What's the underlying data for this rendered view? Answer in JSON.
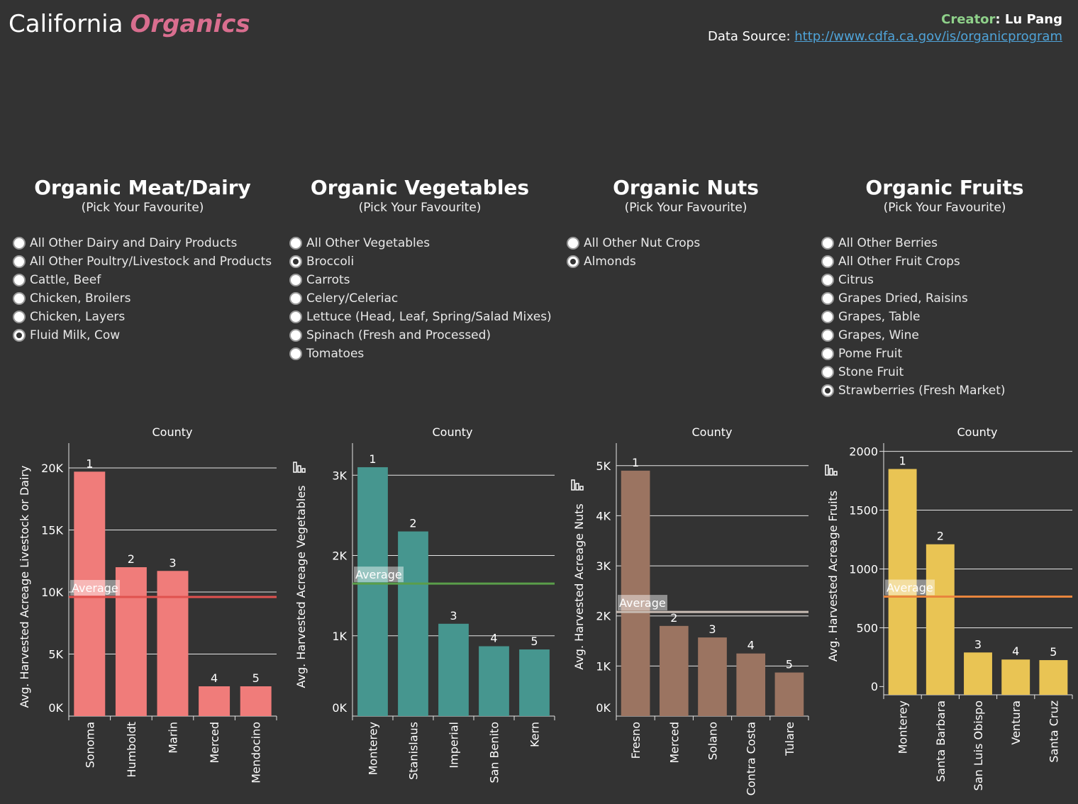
{
  "header": {
    "title_part1": "California",
    "title_part2": "Organics",
    "creator_label": "Creator",
    "creator_name": ": Lu Pang",
    "source_label": "Data Source: ",
    "source_link": "http://www.cdfa.ca.gov/is/organicprogram"
  },
  "panels": [
    {
      "title": "Organic Meat/Dairy",
      "subtitle": "(Pick Your Favourite)",
      "options": [
        "All Other Dairy and Dairy Products",
        "All Other Poultry/Livestock and Products",
        "Cattle, Beef",
        "Chicken, Broilers",
        "Chicken, Layers",
        "Fluid Milk, Cow"
      ],
      "selected_index": 5
    },
    {
      "title": "Organic Vegetables",
      "subtitle": "(Pick Your Favourite)",
      "options": [
        "All Other Vegetables",
        "Broccoli",
        "Carrots",
        "Celery/Celeriac",
        "Lettuce (Head, Leaf, Spring/Salad Mixes)",
        "Spinach (Fresh and Processed)",
        "Tomatoes"
      ],
      "selected_index": 1
    },
    {
      "title": "Organic Nuts",
      "subtitle": "(Pick Your Favourite)",
      "options": [
        "All Other Nut Crops",
        "Almonds"
      ],
      "selected_index": 1
    },
    {
      "title": "Organic Fruits",
      "subtitle": "(Pick Your Favourite)",
      "options": [
        "All Other Berries",
        "All Other Fruit Crops",
        "Citrus",
        "Grapes Dried, Raisins",
        "Grapes, Table",
        "Grapes, Wine",
        "Pome Fruit",
        "Stone Fruit",
        "Strawberries (Fresh Market)"
      ],
      "selected_index": 8
    }
  ],
  "chart_data": [
    {
      "type": "bar",
      "title": "County",
      "xlabel": "",
      "ylabel": "Avg. Harvested Acreage Livestock or Dairy",
      "categories": [
        "Sonoma",
        "Humboldt",
        "Marin",
        "Merced",
        "Mendocino"
      ],
      "values": [
        19700,
        12000,
        11700,
        2400,
        2400
      ],
      "ranks": [
        "1",
        "2",
        "3",
        "4",
        "5"
      ],
      "average": 9600,
      "average_label": "Average",
      "ylim": [
        0,
        22000
      ],
      "yticks": [
        0,
        5000,
        10000,
        15000,
        20000
      ],
      "ytick_labels": [
        "0K",
        "5K",
        "10K",
        "15K",
        "20K"
      ],
      "grid": true,
      "bar_color": "#f07c7a",
      "average_color": "#e0524f"
    },
    {
      "type": "bar",
      "title": "County",
      "xlabel": "",
      "ylabel": "Avg. Harvested Acreage Vegetables",
      "categories": [
        "Monterey",
        "Stanislaus",
        "Imperial",
        "San Benito",
        "Kern"
      ],
      "values": [
        3100,
        2300,
        1150,
        870,
        830
      ],
      "ranks": [
        "1",
        "2",
        "3",
        "4",
        "5"
      ],
      "average": 1650,
      "average_label": "Average",
      "ylim": [
        0,
        3400
      ],
      "yticks": [
        0,
        1000,
        2000,
        3000
      ],
      "ytick_labels": [
        "0K",
        "1K",
        "2K",
        "3K"
      ],
      "grid": true,
      "bar_color": "#46968f",
      "average_color": "#5a9e4a"
    },
    {
      "type": "bar",
      "title": "County",
      "xlabel": "",
      "ylabel": "Avg. Harvested Acreage Nuts",
      "categories": [
        "Fresno",
        "Merced",
        "Solano",
        "Contra Costa",
        "Tulare"
      ],
      "values": [
        4900,
        1800,
        1570,
        1250,
        870
      ],
      "ranks": [
        "1",
        "2",
        "3",
        "4",
        "5"
      ],
      "average": 2080,
      "average_label": "Average",
      "ylim": [
        0,
        5450
      ],
      "yticks": [
        0,
        1000,
        2000,
        3000,
        4000,
        5000
      ],
      "ytick_labels": [
        "0K",
        "1K",
        "2K",
        "3K",
        "4K",
        "5K"
      ],
      "grid": true,
      "bar_color": "#9b7461",
      "average_color": "#c9bdb4"
    },
    {
      "type": "bar",
      "title": "County",
      "xlabel": "",
      "ylabel": "Avg. Harvested Acreage Fruits",
      "categories": [
        "Monterey",
        "Santa Barbara",
        "San Luis Obispo",
        "Ventura",
        "Santa Cruz"
      ],
      "values": [
        1850,
        1210,
        290,
        230,
        225
      ],
      "ranks": [
        "1",
        "2",
        "3",
        "4",
        "5"
      ],
      "average": 765,
      "average_label": "Average",
      "ylim": [
        -70,
        2070
      ],
      "yticks": [
        0,
        500,
        1000,
        1500,
        2000
      ],
      "ytick_labels": [
        "0",
        "500",
        "1000",
        "1500",
        "2000"
      ],
      "grid": true,
      "bar_color": "#e9c454",
      "average_color": "#e8853d"
    }
  ]
}
